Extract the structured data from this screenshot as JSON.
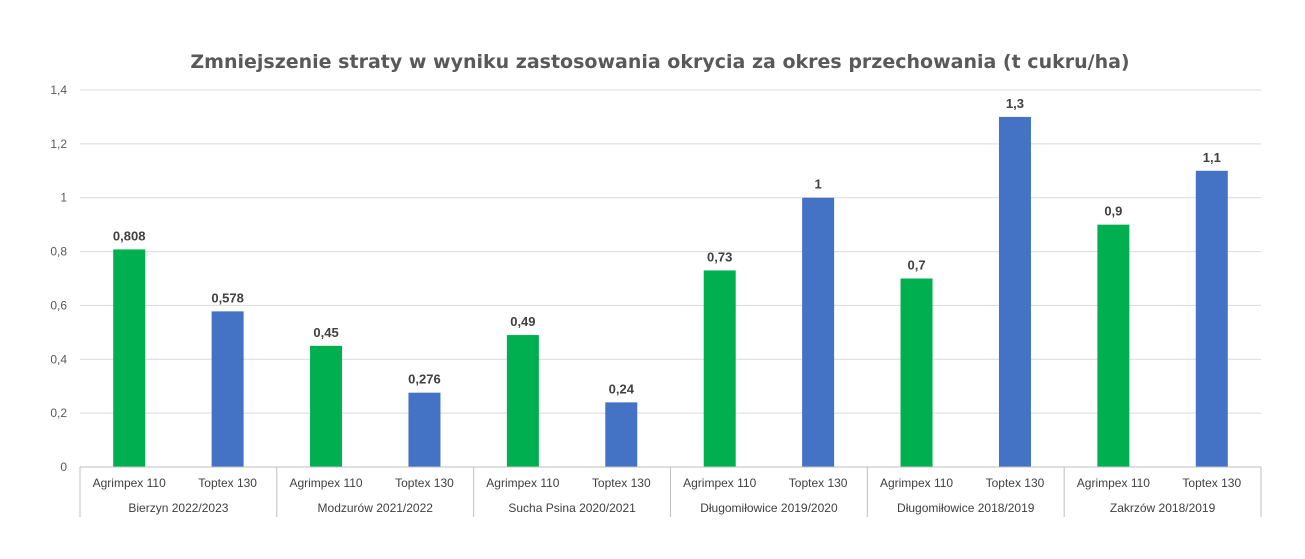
{
  "chart_data": {
    "type": "bar",
    "title": "Zmniejszenie straty w wyniku zastosowania okrycia za okres przechowania (t cukru/ha)",
    "xlabel": "",
    "ylabel": "",
    "ylim": [
      0,
      1.4
    ],
    "yticks": [
      "0",
      "0,2",
      "0,4",
      "0,6",
      "0,8",
      "1",
      "1,2",
      "1,4"
    ],
    "grid": true,
    "legend": "none",
    "groups": [
      {
        "name": "Bierzyn 2022/2023",
        "bars": [
          {
            "category": "Agrimpex 110",
            "value": 0.808,
            "label": "0,808"
          },
          {
            "category": "Toptex 130",
            "value": 0.578,
            "label": "0,578"
          }
        ]
      },
      {
        "name": "Modzurów 2021/2022",
        "bars": [
          {
            "category": "Agrimpex 110",
            "value": 0.45,
            "label": "0,45"
          },
          {
            "category": "Toptex 130",
            "value": 0.276,
            "label": "0,276"
          }
        ]
      },
      {
        "name": "Sucha Psina 2020/2021",
        "bars": [
          {
            "category": "Agrimpex 110",
            "value": 0.49,
            "label": "0,49"
          },
          {
            "category": "Toptex 130",
            "value": 0.24,
            "label": "0,24"
          }
        ]
      },
      {
        "name": "Długomiłowice 2019/2020",
        "bars": [
          {
            "category": "Agrimpex 110",
            "value": 0.73,
            "label": "0,73"
          },
          {
            "category": "Toptex 130",
            "value": 1,
            "label": "1"
          }
        ]
      },
      {
        "name": "Długomiłowice 2018/2019",
        "bars": [
          {
            "category": "Agrimpex 110",
            "value": 0.7,
            "label": "0,7"
          },
          {
            "category": "Toptex 130",
            "value": 1.3,
            "label": "1,3"
          }
        ]
      },
      {
        "name": "Zakrzów 2018/2019",
        "bars": [
          {
            "category": "Agrimpex 110",
            "value": 0.9,
            "label": "0,9"
          },
          {
            "category": "Toptex 130",
            "value": 1.1,
            "label": "1,1"
          }
        ]
      }
    ],
    "colors": {
      "Agrimpex 110": "#00b050",
      "Toptex 130": "#4472c4"
    }
  }
}
